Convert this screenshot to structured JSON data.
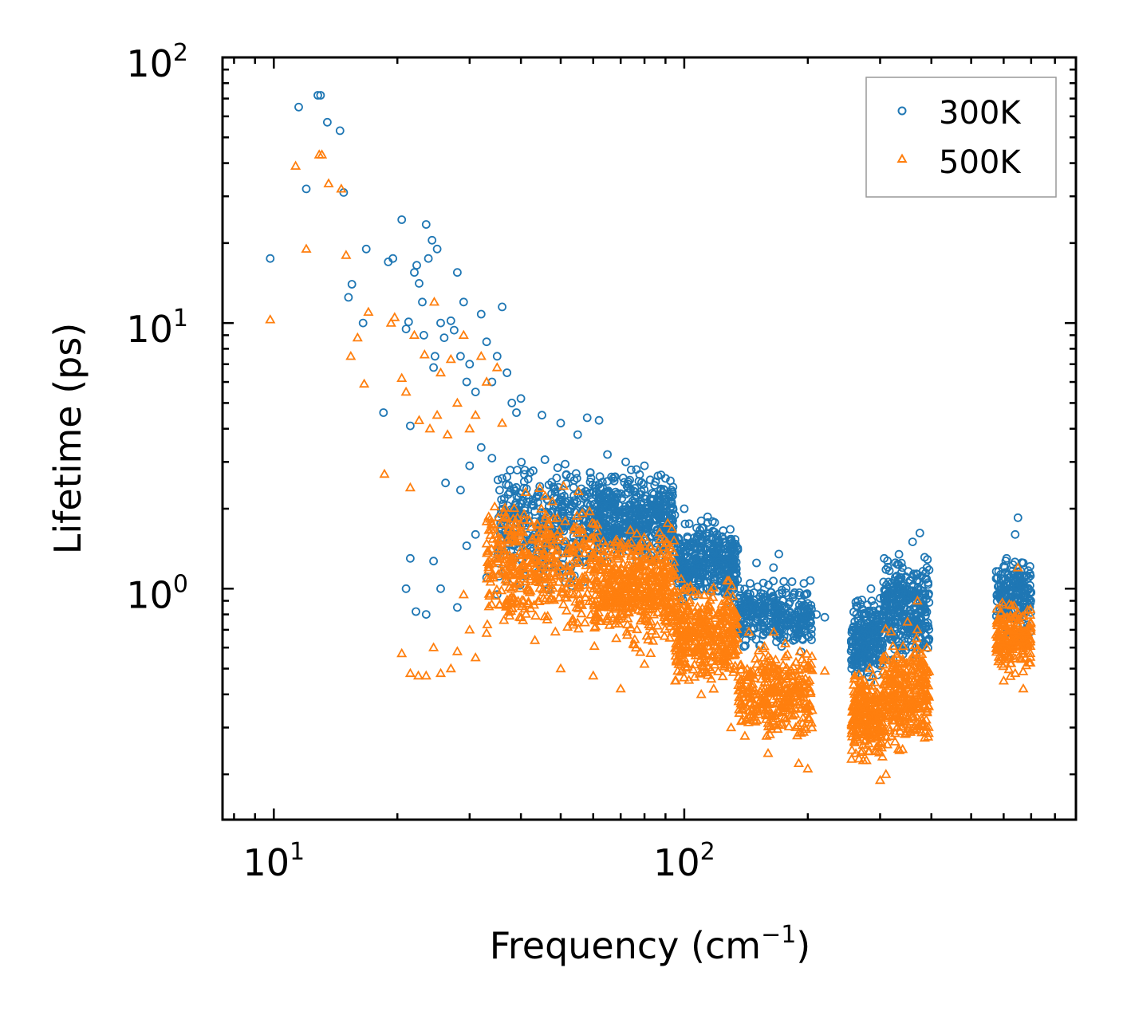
{
  "chart_data": {
    "type": "scatter",
    "title": "",
    "xlabel": "Frequency (cm",
    "xlabel_sup": "−1",
    "xlabel_close": ")",
    "ylabel": "Lifetime (ps)",
    "xscale": "log",
    "yscale": "log",
    "xlim": [
      7.5,
      900
    ],
    "ylim": [
      0.135,
      100
    ],
    "x_ticks": [
      {
        "value": 10,
        "base": "10",
        "exp": "1"
      },
      {
        "value": 100,
        "base": "10",
        "exp": "2"
      }
    ],
    "y_ticks": [
      {
        "value": 1,
        "base": "10",
        "exp": "0"
      },
      {
        "value": 10,
        "base": "10",
        "exp": "1"
      },
      {
        "value": 100,
        "base": "10",
        "exp": "2"
      }
    ],
    "legend_position": "top-right",
    "colors": {
      "300K": "#1f77b4",
      "500K": "#ff7f0e"
    },
    "series": [
      {
        "name": "300K",
        "marker": "circle",
        "points": [
          [
            9.8,
            17.5
          ],
          [
            11.5,
            65
          ],
          [
            12,
            32
          ],
          [
            12.8,
            72
          ],
          [
            13,
            72
          ],
          [
            13.5,
            57
          ],
          [
            14.5,
            53
          ],
          [
            14.8,
            31
          ],
          [
            15.2,
            12.5
          ],
          [
            15.5,
            14
          ],
          [
            16.5,
            10
          ],
          [
            16.8,
            19
          ],
          [
            18.5,
            4.6
          ],
          [
            19,
            17
          ],
          [
            19.5,
            17.5
          ],
          [
            20.5,
            24.5
          ],
          [
            21,
            9.5
          ],
          [
            21.3,
            10.1
          ],
          [
            21.5,
            4.1
          ],
          [
            22,
            15.5
          ],
          [
            22.3,
            16.5
          ],
          [
            22.6,
            14.1
          ],
          [
            23,
            12
          ],
          [
            23.2,
            9
          ],
          [
            23.5,
            23.5
          ],
          [
            23.8,
            17.5
          ],
          [
            24.3,
            20.5
          ],
          [
            24.5,
            6.8
          ],
          [
            24.7,
            7.5
          ],
          [
            25,
            19
          ],
          [
            25.5,
            10
          ],
          [
            26,
            8.8
          ],
          [
            26.2,
            2.5
          ],
          [
            27,
            10.2
          ],
          [
            27.5,
            9.4
          ],
          [
            28,
            15.5
          ],
          [
            28.5,
            7.5
          ],
          [
            29,
            12
          ],
          [
            29.5,
            6
          ],
          [
            30,
            7
          ],
          [
            31,
            5.5
          ],
          [
            32,
            10.8
          ],
          [
            33,
            8.5
          ],
          [
            34,
            6
          ],
          [
            35,
            7.5
          ],
          [
            36,
            11.5
          ],
          [
            37,
            6.5
          ],
          [
            38,
            5
          ],
          [
            39,
            4.6
          ],
          [
            40,
            5.2
          ],
          [
            21,
            1.0
          ],
          [
            21.5,
            1.3
          ],
          [
            22.2,
            0.82
          ],
          [
            23.5,
            0.8
          ],
          [
            24.5,
            1.27
          ],
          [
            25.5,
            1.0
          ],
          [
            28,
            0.85
          ],
          [
            29.5,
            1.45
          ],
          [
            31,
            1.6
          ],
          [
            33,
            1.1
          ],
          [
            35,
            0.95
          ],
          [
            28.5,
            2.35
          ],
          [
            30,
            2.9
          ],
          [
            32,
            3.4
          ],
          [
            34,
            3.1
          ],
          [
            36,
            2.6
          ],
          [
            45,
            4.5
          ],
          [
            50,
            4.2
          ],
          [
            55,
            3.8
          ],
          [
            58,
            4.4
          ],
          [
            62,
            4.3
          ],
          [
            65,
            3.2
          ],
          [
            72,
            3.0
          ],
          [
            80,
            2.9
          ],
          [
            90,
            2.6
          ],
          [
            100,
            2.0
          ],
          [
            110,
            1.8
          ],
          [
            120,
            1.6
          ],
          [
            135,
            1.4
          ],
          [
            150,
            1.25
          ],
          [
            165,
            1.2
          ],
          [
            170,
            1.35
          ],
          [
            185,
            0.95
          ],
          [
            200,
            0.88
          ],
          [
            210,
            0.8
          ],
          [
            220,
            0.78
          ],
          [
            265,
            0.9
          ],
          [
            285,
            1.0
          ],
          [
            300,
            0.92
          ],
          [
            320,
            1.05
          ],
          [
            340,
            1.2
          ],
          [
            360,
            1.5
          ],
          [
            375,
            1.62
          ],
          [
            390,
            1.2
          ],
          [
            580,
            1.1
          ],
          [
            610,
            1.3
          ],
          [
            640,
            1.6
          ],
          [
            650,
            1.85
          ],
          [
            670,
            1.25
          ],
          [
            690,
            1.1
          ]
        ],
        "bands": [
          {
            "x": [
              35,
              60
            ],
            "y": [
              0.9,
              3.5
            ],
            "n": 380
          },
          {
            "x": [
              60,
              95
            ],
            "y": [
              1.1,
              3.0
            ],
            "n": 520
          },
          {
            "x": [
              95,
              135
            ],
            "y": [
              0.8,
              2.0
            ],
            "n": 380
          },
          {
            "x": [
              135,
              205
            ],
            "y": [
              0.55,
              1.15
            ],
            "n": 320
          },
          {
            "x": [
              255,
              305
            ],
            "y": [
              0.42,
              1.02
            ],
            "n": 230
          },
          {
            "x": [
              305,
              395
            ],
            "y": [
              0.48,
              1.45
            ],
            "n": 320
          },
          {
            "x": [
              575,
              700
            ],
            "y": [
              0.6,
              1.5
            ],
            "n": 190
          }
        ]
      },
      {
        "name": "500K",
        "marker": "triangle",
        "points": [
          [
            9.8,
            10.3
          ],
          [
            11.3,
            39
          ],
          [
            12,
            19
          ],
          [
            12.9,
            43
          ],
          [
            13.1,
            43
          ],
          [
            13.6,
            33.5
          ],
          [
            14.6,
            32
          ],
          [
            15,
            18
          ],
          [
            15.4,
            7.5
          ],
          [
            16,
            8.8
          ],
          [
            16.6,
            5.9
          ],
          [
            17,
            11
          ],
          [
            18.6,
            2.7
          ],
          [
            19.3,
            10
          ],
          [
            19.7,
            10.5
          ],
          [
            20.5,
            6.2
          ],
          [
            21,
            5.5
          ],
          [
            21.5,
            2.4
          ],
          [
            22,
            9
          ],
          [
            22.6,
            4.3
          ],
          [
            23.3,
            7.6
          ],
          [
            24,
            4
          ],
          [
            24.6,
            12
          ],
          [
            25,
            4.5
          ],
          [
            25.5,
            6.5
          ],
          [
            26.5,
            3.8
          ],
          [
            27,
            7.3
          ],
          [
            28,
            5
          ],
          [
            29,
            9
          ],
          [
            30,
            4
          ],
          [
            31,
            4.5
          ],
          [
            32,
            7.5
          ],
          [
            33,
            6
          ],
          [
            35,
            6.8
          ],
          [
            36,
            4.2
          ],
          [
            20.5,
            0.57
          ],
          [
            21.5,
            0.48
          ],
          [
            22.5,
            0.47
          ],
          [
            23.5,
            0.47
          ],
          [
            24.5,
            0.6
          ],
          [
            25.5,
            0.48
          ],
          [
            27,
            0.5
          ],
          [
            28,
            0.58
          ],
          [
            29,
            0.95
          ],
          [
            30,
            0.7
          ],
          [
            31,
            0.55
          ],
          [
            33,
            0.68
          ],
          [
            50,
            0.5
          ],
          [
            60,
            0.47
          ],
          [
            70,
            0.42
          ],
          [
            80,
            0.52
          ],
          [
            95,
            0.45
          ],
          [
            110,
            0.4
          ],
          [
            130,
            0.3
          ],
          [
            160,
            0.24
          ],
          [
            190,
            0.22
          ],
          [
            200,
            0.21
          ],
          [
            220,
            0.49
          ],
          [
            300,
            0.19
          ],
          [
            310,
            0.2
          ],
          [
            350,
            0.75
          ],
          [
            370,
            0.9
          ],
          [
            600,
            0.45
          ],
          [
            650,
            1.2
          ],
          [
            670,
            0.42
          ],
          [
            640,
            0.48
          ]
        ],
        "bands": [
          {
            "x": [
              33,
              60
            ],
            "y": [
              0.55,
              2.7
            ],
            "n": 420
          },
          {
            "x": [
              60,
              95
            ],
            "y": [
              0.55,
              1.9
            ],
            "n": 520
          },
          {
            "x": [
              95,
              135
            ],
            "y": [
              0.38,
              1.2
            ],
            "n": 380
          },
          {
            "x": [
              135,
              205
            ],
            "y": [
              0.24,
              0.7
            ],
            "n": 340
          },
          {
            "x": [
              255,
              305
            ],
            "y": [
              0.2,
              0.55
            ],
            "n": 240
          },
          {
            "x": [
              305,
              395
            ],
            "y": [
              0.22,
              0.75
            ],
            "n": 320
          },
          {
            "x": [
              575,
              700
            ],
            "y": [
              0.45,
              0.95
            ],
            "n": 190
          }
        ]
      }
    ]
  }
}
